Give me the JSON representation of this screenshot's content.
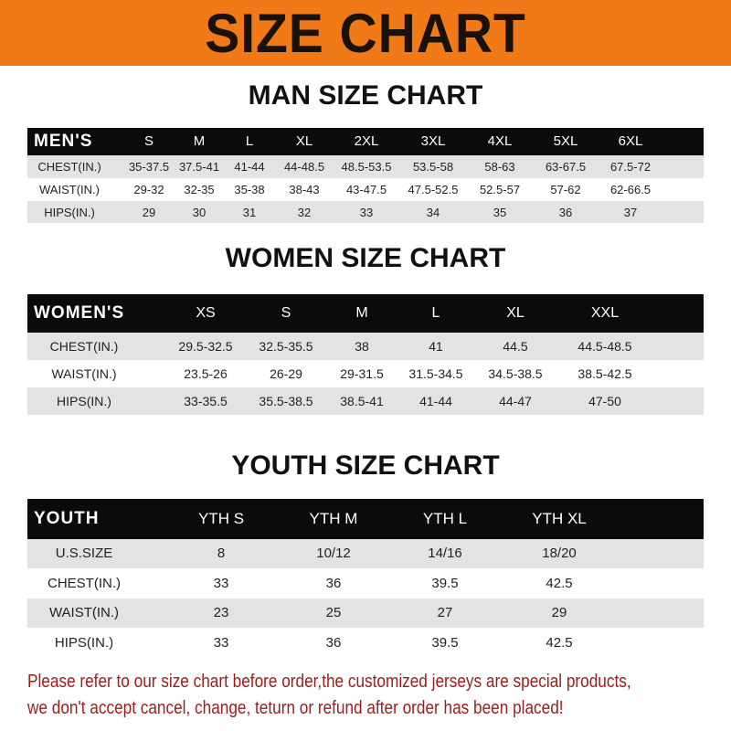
{
  "banner_title": "SIZE CHART",
  "men": {
    "title": "MAN SIZE CHART",
    "header": [
      "MEN'S",
      "S",
      "M",
      "L",
      "XL",
      "2XL",
      "3XL",
      "4XL",
      "5XL",
      "6XL"
    ],
    "rows": [
      [
        "CHEST(IN.)",
        "35-37.5",
        "37.5-41",
        "41-44",
        "44-48.5",
        "48.5-53.5",
        "53.5-58",
        "58-63",
        "63-67.5",
        "67.5-72"
      ],
      [
        "WAIST(IN.)",
        "29-32",
        "32-35",
        "35-38",
        "38-43",
        "43-47.5",
        "47.5-52.5",
        "52.5-57",
        "57-62",
        "62-66.5"
      ],
      [
        "HIPS(IN.)",
        "29",
        "30",
        "31",
        "32",
        "33",
        "34",
        "35",
        "36",
        "37"
      ]
    ]
  },
  "women": {
    "title": "WOMEN SIZE CHART",
    "header": [
      "WOMEN'S",
      "XS",
      "S",
      "M",
      "L",
      "XL",
      "XXL"
    ],
    "rows": [
      [
        "CHEST(IN.)",
        "29.5-32.5",
        "32.5-35.5",
        "38",
        "41",
        "44.5",
        "44.5-48.5"
      ],
      [
        "WAIST(IN.)",
        "23.5-26",
        "26-29",
        "29-31.5",
        "31.5-34.5",
        "34.5-38.5",
        "38.5-42.5"
      ],
      [
        "HIPS(IN.)",
        "33-35.5",
        "35.5-38.5",
        "38.5-41",
        "41-44",
        "44-47",
        "47-50"
      ]
    ]
  },
  "youth": {
    "title": "YOUTH SIZE CHART",
    "header": [
      "YOUTH",
      "YTH S",
      "YTH M",
      "YTH L",
      "YTH XL"
    ],
    "rows": [
      [
        "U.S.SIZE",
        "8",
        "10/12",
        "14/16",
        "18/20"
      ],
      [
        "CHEST(IN.)",
        "33",
        "36",
        "39.5",
        "42.5"
      ],
      [
        "WAIST(IN.)",
        "23",
        "25",
        "27",
        "29"
      ],
      [
        "HIPS(IN.)",
        "33",
        "36",
        "39.5",
        "42.5"
      ]
    ]
  },
  "footer": {
    "line1": "Please refer to our size chart before order,the customized jerseys are special products,",
    "line2": "we don't accept cancel, change, teturn or refund after order has been placed!"
  },
  "colors": {
    "banner": "#f07a18",
    "footer_text": "#9c1c1c",
    "table_header": "#0b0b0b",
    "row_alt": "#e3e3e3"
  }
}
